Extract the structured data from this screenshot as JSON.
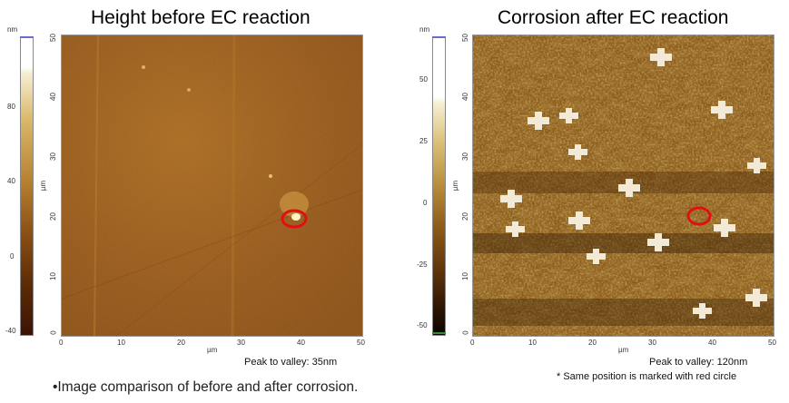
{
  "left": {
    "title": "Height before EC reaction",
    "colorbar_unit": "nm",
    "colorbar_ticks": [
      "80",
      "40",
      "0",
      "-40"
    ],
    "y_ticks": [
      "50",
      "40",
      "30",
      "20",
      "10",
      "0"
    ],
    "x_ticks": [
      "0",
      "10",
      "20",
      "30",
      "40",
      "50"
    ],
    "axis_unit_y": "µm",
    "axis_unit_x": "µm",
    "peak_to_valley": "Peak to valley: 35nm"
  },
  "right": {
    "title": "Corrosion after EC reaction",
    "colorbar_unit": "nm",
    "colorbar_ticks": [
      "50",
      "25",
      "0",
      "-25",
      "-50"
    ],
    "y_ticks": [
      "50",
      "40",
      "30",
      "20",
      "10",
      "0"
    ],
    "x_ticks": [
      "0",
      "10",
      "20",
      "30",
      "40",
      "50"
    ],
    "axis_unit_y": "µm",
    "axis_unit_x": "µm",
    "peak_to_valley": "Peak to valley: 120nm",
    "marker_note": "* Same position is marked with red circle"
  },
  "caption": "•Image comparison of before and after corrosion.",
  "colors": {
    "marker": "#e01010",
    "afm_dark": "#3a1f05",
    "afm_mid": "#a0641e",
    "afm_light": "#f8f0c8"
  }
}
